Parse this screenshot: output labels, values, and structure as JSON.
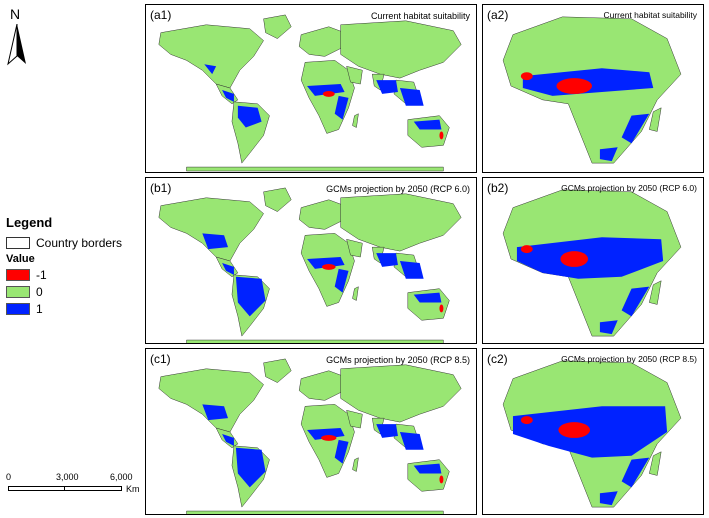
{
  "north_label": "N",
  "legend": {
    "title": "Legend",
    "border_label": "Country borders",
    "value_title": "Value",
    "items": [
      {
        "label": "-1",
        "color": "#ff0000"
      },
      {
        "label": "0",
        "color": "#99e673"
      },
      {
        "label": "1",
        "color": "#0022ff"
      }
    ]
  },
  "scale": {
    "labels": [
      "0",
      "3,000",
      "6,000"
    ],
    "unit": "Km"
  },
  "panels": {
    "a1": {
      "id": "(a1)",
      "title": "Current habitat suitability"
    },
    "a2": {
      "id": "(a2)",
      "title": "Current habitat suitability"
    },
    "b1": {
      "id": "(b1)",
      "title": "GCMs projection by 2050 (RCP 6.0)"
    },
    "b2": {
      "id": "(b2)",
      "title": "GCMs projection by 2050 (RCP 6.0)"
    },
    "c1": {
      "id": "(c1)",
      "title": "GCMs projection by 2050 (RCP 8.5)"
    },
    "c2": {
      "id": "(c2)",
      "title": "GCMs projection by 2050 (RCP 8.5)"
    }
  }
}
